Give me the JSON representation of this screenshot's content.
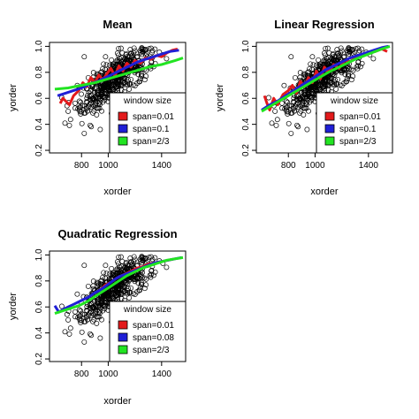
{
  "chart_data": [
    {
      "type": "scatter",
      "title": "Mean",
      "xlabel": "xorder",
      "ylabel": "yorder",
      "xlim": [
        560,
        1580
      ],
      "ylim": [
        0.18,
        1.03
      ],
      "xticks": [
        "800",
        "1000",
        "1400"
      ],
      "yticks": [
        "0.2",
        "0.4",
        "0.6",
        "0.8",
        "1.0"
      ],
      "legend": {
        "title": "window size",
        "position": "bottom-right",
        "entries": [
          {
            "label": "span=0.01",
            "color": "#e31a1c"
          },
          {
            "label": "span=0.1",
            "color": "#1f1fd6"
          },
          {
            "label": "span=2/3",
            "color": "#22e422"
          }
        ]
      },
      "series": [
        {
          "name": "span=0.01",
          "color": "#e31a1c",
          "x": [
            640,
            660,
            690,
            710,
            740,
            780,
            810,
            840,
            870,
            900,
            930,
            960,
            990,
            1020,
            1050,
            1080,
            1110,
            1140,
            1170,
            1200,
            1240,
            1280,
            1320,
            1360,
            1400,
            1440,
            1480,
            1520
          ],
          "y": [
            0.56,
            0.6,
            0.57,
            0.55,
            0.62,
            0.66,
            0.72,
            0.69,
            0.76,
            0.72,
            0.78,
            0.74,
            0.79,
            0.83,
            0.77,
            0.85,
            0.81,
            0.87,
            0.84,
            0.89,
            0.87,
            0.91,
            0.9,
            0.93,
            0.92,
            0.95,
            0.97,
            0.98
          ]
        },
        {
          "name": "span=0.1",
          "color": "#1f1fd6",
          "x": [
            620,
            680,
            740,
            800,
            860,
            920,
            980,
            1040,
            1100,
            1160,
            1220,
            1280,
            1340,
            1400,
            1460,
            1530
          ],
          "y": [
            0.62,
            0.64,
            0.66,
            0.68,
            0.71,
            0.73,
            0.76,
            0.79,
            0.82,
            0.85,
            0.88,
            0.9,
            0.92,
            0.94,
            0.96,
            0.97
          ]
        },
        {
          "name": "span=2/3",
          "color": "#22e422",
          "x": [
            600,
            700,
            800,
            900,
            1000,
            1100,
            1200,
            1300,
            1400,
            1500,
            1560
          ],
          "y": [
            0.67,
            0.68,
            0.7,
            0.72,
            0.75,
            0.78,
            0.81,
            0.84,
            0.86,
            0.89,
            0.91
          ]
        }
      ]
    },
    {
      "type": "scatter",
      "title": "Linear Regression",
      "xlabel": "xorder",
      "ylabel": "yorder",
      "xlim": [
        560,
        1580
      ],
      "ylim": [
        0.18,
        1.03
      ],
      "xticks": [
        "800",
        "1000",
        "1400"
      ],
      "yticks": [
        "0.2",
        "0.4",
        "0.6",
        "0.8",
        "1.0"
      ],
      "legend": {
        "title": "window size",
        "position": "bottom-right",
        "entries": [
          {
            "label": "span=0.01",
            "color": "#e31a1c"
          },
          {
            "label": "span=0.1",
            "color": "#1f1fd6"
          },
          {
            "label": "span=2/3",
            "color": "#22e422"
          }
        ]
      },
      "series": [
        {
          "name": "span=0.01",
          "color": "#e31a1c",
          "x": [
            620,
            640,
            660,
            690,
            720,
            760,
            800,
            830,
            860,
            890,
            920,
            950,
            980,
            1010,
            1040,
            1070,
            1100,
            1140,
            1180,
            1220,
            1260,
            1300,
            1350,
            1400,
            1450,
            1500,
            1540
          ],
          "y": [
            0.62,
            0.56,
            0.51,
            0.6,
            0.55,
            0.63,
            0.66,
            0.7,
            0.64,
            0.73,
            0.69,
            0.76,
            0.72,
            0.81,
            0.75,
            0.84,
            0.8,
            0.86,
            0.83,
            0.89,
            0.88,
            0.91,
            0.93,
            0.95,
            0.96,
            0.98,
            0.96
          ]
        },
        {
          "name": "span=0.1",
          "color": "#1f1fd6",
          "x": [
            600,
            660,
            720,
            780,
            840,
            900,
            960,
            1020,
            1080,
            1140,
            1200,
            1260,
            1320,
            1380,
            1440,
            1500,
            1550
          ],
          "y": [
            0.51,
            0.55,
            0.58,
            0.62,
            0.66,
            0.7,
            0.74,
            0.78,
            0.82,
            0.85,
            0.88,
            0.91,
            0.93,
            0.95,
            0.97,
            0.99,
            1.0
          ]
        },
        {
          "name": "span=2/3",
          "color": "#22e422",
          "x": [
            600,
            700,
            800,
            900,
            1000,
            1100,
            1200,
            1300,
            1400,
            1500,
            1560
          ],
          "y": [
            0.5,
            0.56,
            0.62,
            0.68,
            0.74,
            0.8,
            0.85,
            0.9,
            0.94,
            0.98,
            1.0
          ]
        }
      ]
    },
    {
      "type": "scatter",
      "title": "Quadratic Regression",
      "xlabel": "xorder",
      "ylabel": "yorder",
      "xlim": [
        560,
        1580
      ],
      "ylim": [
        0.18,
        1.03
      ],
      "xticks": [
        "800",
        "1000",
        "1400"
      ],
      "yticks": [
        "0.2",
        "0.4",
        "0.6",
        "0.8",
        "1.0"
      ],
      "legend": {
        "title": "window size",
        "position": "bottom-right",
        "entries": [
          {
            "label": "span=0.01",
            "color": "#e31a1c"
          },
          {
            "label": "span=0.08",
            "color": "#1f1fd6"
          },
          {
            "label": "span=2/3",
            "color": "#22e422"
          }
        ]
      },
      "series": [
        {
          "name": "span=0.01",
          "color": "#e31a1c",
          "x": [
            860,
            900,
            940,
            980,
            1020,
            1060,
            1100,
            1140,
            1180,
            1220,
            1260,
            1300,
            1350,
            1400,
            1450,
            1500
          ],
          "y": [
            0.68,
            0.71,
            0.73,
            0.77,
            0.79,
            0.82,
            0.84,
            0.86,
            0.88,
            0.9,
            0.91,
            0.93,
            0.94,
            0.95,
            0.96,
            0.97
          ]
        },
        {
          "name": "span=0.08",
          "color": "#1f1fd6",
          "x": [
            600,
            630,
            660,
            700,
            740,
            780,
            820,
            860,
            900,
            940,
            980,
            1020,
            1060,
            1100,
            1150,
            1200,
            1250,
            1300,
            1350,
            1400,
            1450,
            1500,
            1550
          ],
          "y": [
            0.61,
            0.56,
            0.58,
            0.6,
            0.62,
            0.64,
            0.66,
            0.68,
            0.71,
            0.73,
            0.76,
            0.79,
            0.82,
            0.84,
            0.86,
            0.88,
            0.9,
            0.92,
            0.94,
            0.95,
            0.96,
            0.97,
            0.98
          ]
        },
        {
          "name": "span=2/3",
          "color": "#22e422",
          "x": [
            600,
            660,
            720,
            780,
            840,
            900,
            960,
            1020,
            1080,
            1140,
            1200,
            1260,
            1320,
            1380,
            1440,
            1500,
            1560
          ],
          "y": [
            0.55,
            0.57,
            0.59,
            0.61,
            0.64,
            0.68,
            0.72,
            0.76,
            0.8,
            0.84,
            0.87,
            0.9,
            0.92,
            0.94,
            0.96,
            0.97,
            0.98
          ]
        }
      ]
    }
  ]
}
